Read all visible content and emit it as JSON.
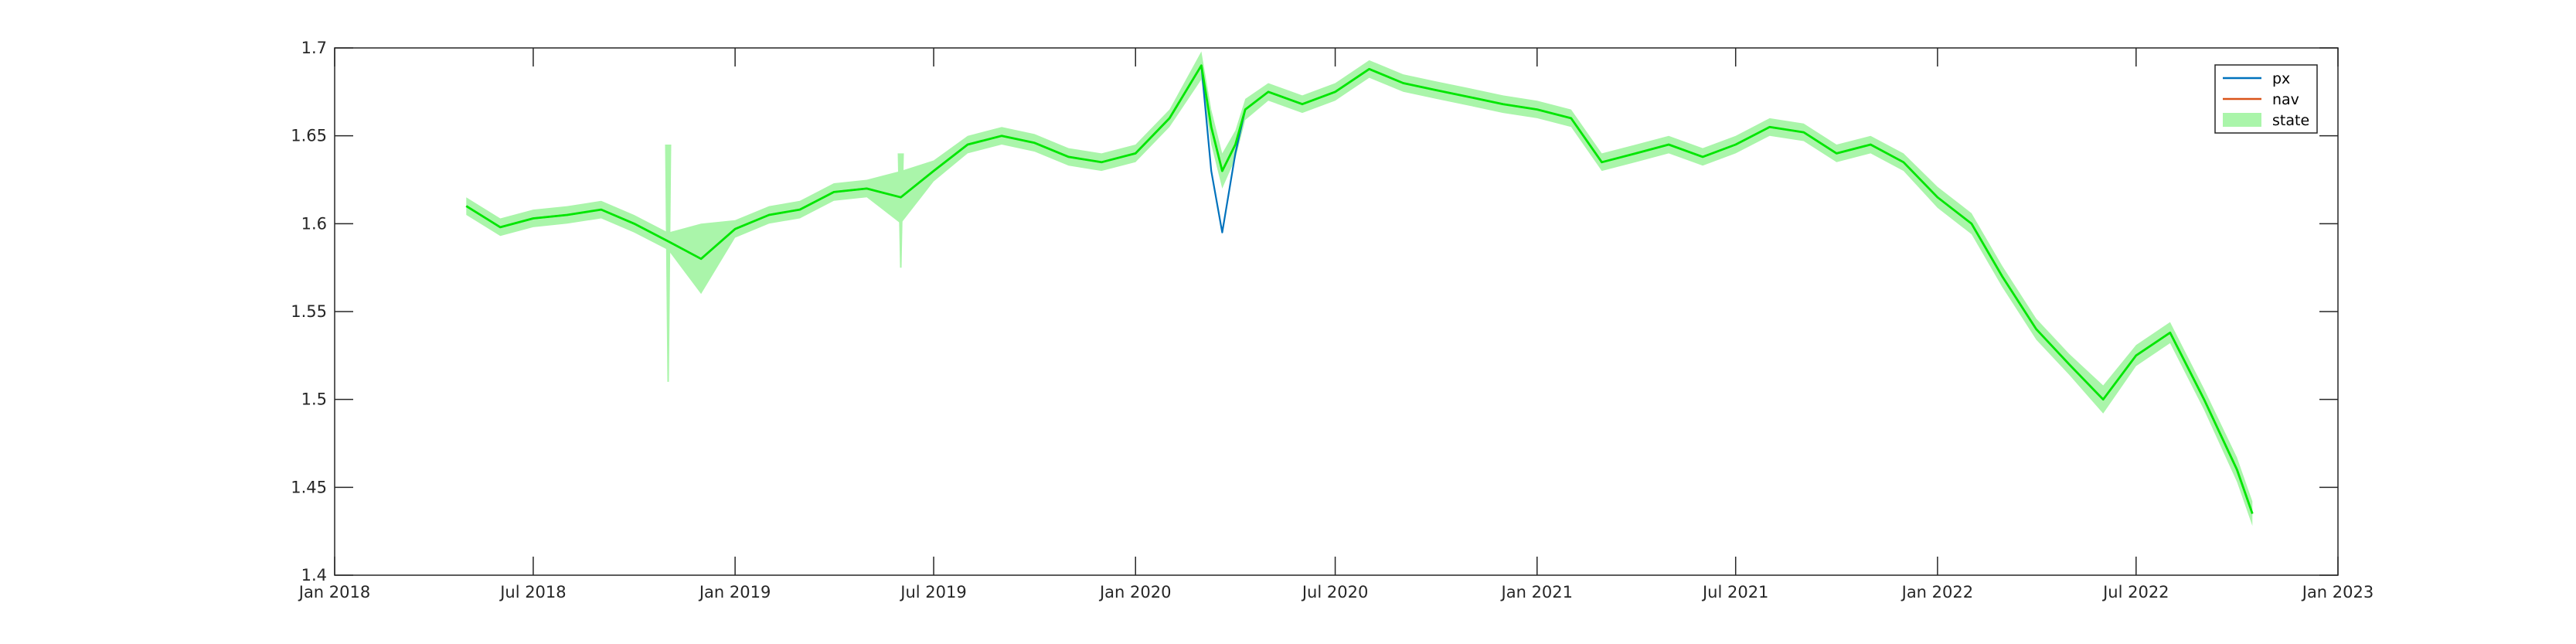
{
  "chart_data": {
    "type": "line",
    "title": "",
    "xlabel": "",
    "ylabel": "",
    "xlim": [
      "2018-01-01",
      "2023-01-01"
    ],
    "ylim": [
      1.4,
      1.7
    ],
    "x_ticks": [
      "Jan 2018",
      "Jul 2018",
      "Jan 2019",
      "Jul 2019",
      "Jan 2020",
      "Jul 2020",
      "Jan 2021",
      "Jul 2021",
      "Jan 2022",
      "Jul 2022",
      "Jan 2023"
    ],
    "y_ticks": [
      "1.4",
      "1.45",
      "1.5",
      "1.55",
      "1.6",
      "1.65",
      "1.7"
    ],
    "grid": false,
    "legend_position": "top-right",
    "colors": {
      "px": "#0072BD",
      "nav": "#D95319",
      "state": "#00E600",
      "state_band": "#AAF5AA"
    },
    "series": [
      {
        "name": "px",
        "x": [
          "2018-05-01",
          "2018-06-01",
          "2018-07-01",
          "2018-08-01",
          "2018-09-01",
          "2018-10-01",
          "2018-11-01",
          "2018-12-01",
          "2019-01-01",
          "2019-02-01",
          "2019-03-01",
          "2019-04-01",
          "2019-05-01",
          "2019-06-01",
          "2019-07-01",
          "2019-08-01",
          "2019-09-01",
          "2019-10-01",
          "2019-11-01",
          "2019-12-01",
          "2020-01-01",
          "2020-02-01",
          "2020-03-01",
          "2020-03-10",
          "2020-03-20",
          "2020-04-01",
          "2020-04-10",
          "2020-05-01",
          "2020-06-01",
          "2020-07-01",
          "2020-08-01",
          "2020-09-01",
          "2020-10-01",
          "2020-11-01",
          "2020-12-01",
          "2021-01-01",
          "2021-02-01",
          "2021-03-01",
          "2021-04-01",
          "2021-05-01",
          "2021-06-01",
          "2021-07-01",
          "2021-08-01",
          "2021-09-01",
          "2021-10-01",
          "2021-11-01",
          "2021-12-01",
          "2022-01-01",
          "2022-02-01",
          "2022-03-01",
          "2022-04-01",
          "2022-05-01",
          "2022-06-01",
          "2022-07-01",
          "2022-08-01",
          "2022-09-01",
          "2022-10-01",
          "2022-10-15"
        ],
        "values": [
          1.61,
          1.598,
          1.603,
          1.605,
          1.608,
          1.6,
          1.59,
          1.58,
          1.597,
          1.605,
          1.608,
          1.618,
          1.62,
          1.615,
          1.63,
          1.645,
          1.65,
          1.646,
          1.638,
          1.635,
          1.64,
          1.66,
          1.69,
          1.63,
          1.595,
          1.64,
          1.665,
          1.675,
          1.668,
          1.675,
          1.688,
          1.68,
          1.676,
          1.672,
          1.668,
          1.665,
          1.66,
          1.635,
          1.64,
          1.645,
          1.638,
          1.645,
          1.655,
          1.652,
          1.64,
          1.645,
          1.635,
          1.615,
          1.6,
          1.57,
          1.54,
          1.52,
          1.5,
          1.525,
          1.538,
          1.5,
          1.46,
          1.435
        ]
      },
      {
        "name": "nav",
        "x": [
          "2018-05-01",
          "2018-06-01",
          "2018-07-01",
          "2018-08-01",
          "2018-09-01",
          "2018-10-01",
          "2018-11-01",
          "2018-12-01",
          "2019-01-01",
          "2019-02-01",
          "2019-03-01",
          "2019-04-01",
          "2019-05-01",
          "2019-06-01",
          "2019-07-01",
          "2019-08-01",
          "2019-09-01",
          "2019-10-01",
          "2019-11-01",
          "2019-12-01",
          "2020-01-01",
          "2020-02-01",
          "2020-03-01",
          "2020-03-10",
          "2020-03-20",
          "2020-04-01",
          "2020-04-10",
          "2020-05-01",
          "2020-06-01",
          "2020-07-01",
          "2020-08-01",
          "2020-09-01",
          "2020-10-01",
          "2020-11-01",
          "2020-12-01",
          "2021-01-01",
          "2021-02-01",
          "2021-03-01",
          "2021-04-01",
          "2021-05-01",
          "2021-06-01",
          "2021-07-01",
          "2021-08-01",
          "2021-09-01",
          "2021-10-01",
          "2021-11-01",
          "2021-12-01",
          "2022-01-01",
          "2022-02-01",
          "2022-03-01",
          "2022-04-01",
          "2022-05-01",
          "2022-06-01",
          "2022-07-01",
          "2022-08-01",
          "2022-09-01",
          "2022-10-01",
          "2022-10-15"
        ],
        "values": [
          1.61,
          1.598,
          1.603,
          1.605,
          1.608,
          1.6,
          1.59,
          1.58,
          1.597,
          1.605,
          1.608,
          1.618,
          1.62,
          1.615,
          1.63,
          1.645,
          1.65,
          1.646,
          1.638,
          1.635,
          1.64,
          1.66,
          1.69,
          1.655,
          1.63,
          1.645,
          1.665,
          1.675,
          1.668,
          1.675,
          1.688,
          1.68,
          1.676,
          1.672,
          1.668,
          1.665,
          1.66,
          1.635,
          1.64,
          1.645,
          1.638,
          1.645,
          1.655,
          1.652,
          1.64,
          1.645,
          1.635,
          1.615,
          1.6,
          1.57,
          1.54,
          1.52,
          1.5,
          1.525,
          1.538,
          1.5,
          1.46,
          1.435
        ]
      },
      {
        "name": "state",
        "x": [
          "2018-05-01",
          "2018-06-01",
          "2018-07-01",
          "2018-08-01",
          "2018-09-01",
          "2018-10-01",
          "2018-11-01",
          "2018-12-01",
          "2019-01-01",
          "2019-02-01",
          "2019-03-01",
          "2019-04-01",
          "2019-05-01",
          "2019-06-01",
          "2019-07-01",
          "2019-08-01",
          "2019-09-01",
          "2019-10-01",
          "2019-11-01",
          "2019-12-01",
          "2020-01-01",
          "2020-02-01",
          "2020-03-01",
          "2020-03-10",
          "2020-03-20",
          "2020-04-01",
          "2020-04-10",
          "2020-05-01",
          "2020-06-01",
          "2020-07-01",
          "2020-08-01",
          "2020-09-01",
          "2020-10-01",
          "2020-11-01",
          "2020-12-01",
          "2021-01-01",
          "2021-02-01",
          "2021-03-01",
          "2021-04-01",
          "2021-05-01",
          "2021-06-01",
          "2021-07-01",
          "2021-08-01",
          "2021-09-01",
          "2021-10-01",
          "2021-11-01",
          "2021-12-01",
          "2022-01-01",
          "2022-02-01",
          "2022-03-01",
          "2022-04-01",
          "2022-05-01",
          "2022-06-01",
          "2022-07-01",
          "2022-08-01",
          "2022-09-01",
          "2022-10-01",
          "2022-10-15"
        ],
        "values": [
          1.61,
          1.598,
          1.603,
          1.605,
          1.608,
          1.6,
          1.59,
          1.58,
          1.597,
          1.605,
          1.608,
          1.618,
          1.62,
          1.615,
          1.63,
          1.645,
          1.65,
          1.646,
          1.638,
          1.635,
          1.64,
          1.66,
          1.69,
          1.655,
          1.63,
          1.645,
          1.665,
          1.675,
          1.668,
          1.675,
          1.688,
          1.68,
          1.676,
          1.672,
          1.668,
          1.665,
          1.66,
          1.635,
          1.64,
          1.645,
          1.638,
          1.645,
          1.655,
          1.652,
          1.64,
          1.645,
          1.635,
          1.615,
          1.6,
          1.57,
          1.54,
          1.52,
          1.5,
          1.525,
          1.538,
          1.5,
          1.46,
          1.435
        ],
        "band": [
          0.005,
          0.005,
          0.005,
          0.005,
          0.005,
          0.005,
          0.005,
          0.02,
          0.005,
          0.005,
          0.005,
          0.005,
          0.005,
          0.015,
          0.006,
          0.005,
          0.005,
          0.005,
          0.005,
          0.005,
          0.005,
          0.005,
          0.008,
          0.01,
          0.01,
          0.008,
          0.006,
          0.005,
          0.005,
          0.005,
          0.005,
          0.005,
          0.005,
          0.005,
          0.005,
          0.005,
          0.005,
          0.005,
          0.005,
          0.005,
          0.005,
          0.005,
          0.005,
          0.005,
          0.005,
          0.005,
          0.005,
          0.006,
          0.006,
          0.006,
          0.006,
          0.006,
          0.008,
          0.006,
          0.006,
          0.006,
          0.007,
          0.007
        ]
      }
    ],
    "spikes": [
      {
        "x": "2018-11-01",
        "low": 1.51,
        "high": 1.645
      },
      {
        "x": "2019-06-01",
        "low": 1.575,
        "high": 1.64
      }
    ]
  }
}
